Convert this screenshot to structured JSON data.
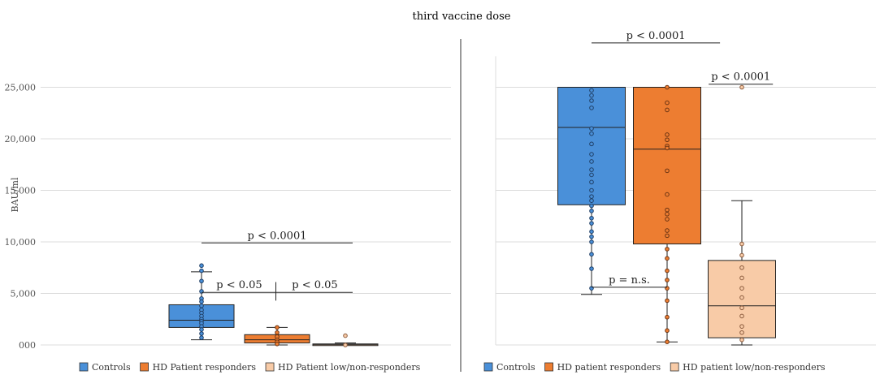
{
  "chart_data": {
    "type": "box",
    "title": "third vaccine dose",
    "ylabel": "BAU/ml",
    "ylim": [
      0,
      28000
    ],
    "yticks": [
      0,
      5000,
      10000,
      15000,
      20000,
      25000
    ],
    "ytick_labels": [
      "000",
      "5,000",
      "10,000",
      "15,000",
      "20,000",
      "25,000"
    ],
    "grid": true,
    "colors": {
      "controls": "#4a90d9",
      "responders": "#ed7d31",
      "low": "#f8cba7"
    },
    "panels": [
      {
        "series": [
          {
            "name": "Controls",
            "key": "controls",
            "whisker_low": 500,
            "q1": 1700,
            "median": 2400,
            "q3": 3900,
            "whisker_high": 7100,
            "points": [
              7700,
              7200,
              6200,
              5200,
              4500,
              4200,
              3800,
              3400,
              3100,
              2800,
              2500,
              2300,
              2100,
              1800,
              1500,
              1100,
              700
            ]
          },
          {
            "name": "HD Patient responders",
            "key": "responders",
            "whisker_low": 0,
            "q1": 200,
            "median": 500,
            "q3": 1000,
            "whisker_high": 1700,
            "points": [
              1700,
              1200,
              800,
              500,
              300,
              100
            ]
          },
          {
            "name": "HD Patient low/non-responders",
            "key": "low",
            "whisker_low": 0,
            "q1": 0,
            "median": 50,
            "q3": 100,
            "whisker_high": 200,
            "points": [
              900,
              0
            ]
          }
        ],
        "annotations": [
          {
            "text": "p < 0.0001",
            "from": 0,
            "to": 2,
            "y": 9900
          },
          {
            "text": "p < 0.05",
            "from": 0,
            "to": 1,
            "y": 5100
          },
          {
            "text": "p < 0.05",
            "from": 1,
            "to": 2,
            "y": 5100
          }
        ],
        "legend": [
          "Controls",
          "HD Patient responders",
          "HD Patient low/non-responders"
        ]
      },
      {
        "series": [
          {
            "name": "Controls",
            "key": "controls",
            "whisker_low": 4900,
            "q1": 13600,
            "median": 21100,
            "q3": 25000,
            "whisker_high": 25000,
            "points": [
              24700,
              24200,
              23700,
              23000,
              21000,
              20500,
              19500,
              18500,
              17800,
              17000,
              16500,
              15800,
              15000,
              14400,
              14000,
              13500,
              13000,
              12300,
              11800,
              11000,
              10500,
              10000,
              8800,
              7400,
              5500
            ]
          },
          {
            "name": "HD patient responders",
            "key": "responders",
            "whisker_low": 300,
            "q1": 9800,
            "median": 19000,
            "q3": 25000,
            "whisker_high": 25000,
            "points": [
              25000,
              23500,
              22800,
              20400,
              19900,
              19300,
              19100,
              16900,
              14600,
              13100,
              12700,
              12200,
              11100,
              10600,
              9300,
              8400,
              7200,
              6300,
              5500,
              4300,
              2700,
              1400,
              300
            ]
          },
          {
            "name": "HD patient low/non-responders",
            "key": "low",
            "whisker_low": 0,
            "q1": 700,
            "median": 3800,
            "q3": 8200,
            "whisker_high": 14000,
            "points": [
              25000,
              9800,
              8700,
              7500,
              6500,
              5500,
              4600,
              3600,
              2800,
              1800,
              1200,
              500
            ]
          }
        ],
        "annotations": [
          {
            "text": "p < 0.0001",
            "from": 0,
            "to": 1.7,
            "y": 29300
          },
          {
            "text": "p < 0.0001",
            "from": 1.55,
            "to": 2.4,
            "y": 25300
          },
          {
            "text": "p = n.s.",
            "from": 0,
            "to": 1,
            "y": 5600
          }
        ],
        "legend": [
          "Controls",
          "HD patient responders",
          "HD patient low/non-responders"
        ]
      }
    ]
  }
}
